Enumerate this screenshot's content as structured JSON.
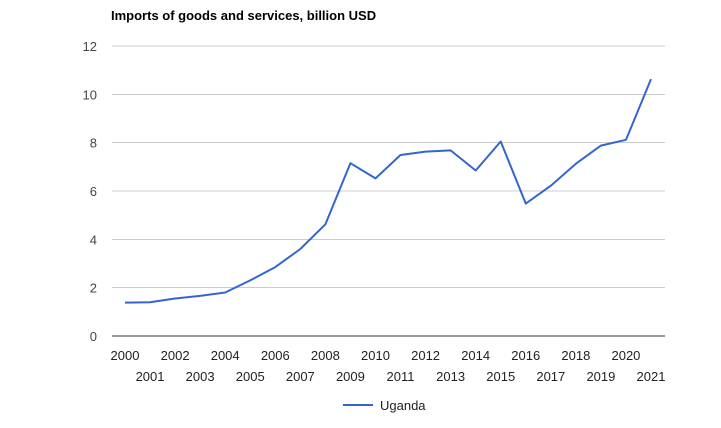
{
  "chart_data": {
    "type": "line",
    "title": "Imports of goods and services, billion USD",
    "xlabel": "",
    "ylabel": "",
    "ylim": [
      0,
      12
    ],
    "yticks": [
      0,
      2,
      4,
      6,
      8,
      10,
      12
    ],
    "grid": true,
    "legend_position": "bottom",
    "x": [
      2000,
      2001,
      2002,
      2003,
      2004,
      2005,
      2006,
      2007,
      2008,
      2009,
      2010,
      2011,
      2012,
      2013,
      2014,
      2015,
      2016,
      2017,
      2018,
      2019,
      2020,
      2021
    ],
    "series": [
      {
        "name": "Uganda",
        "color": "#3366cc",
        "values": [
          1.38,
          1.4,
          1.55,
          1.66,
          1.8,
          2.3,
          2.85,
          3.6,
          4.62,
          7.15,
          6.52,
          7.49,
          7.63,
          7.68,
          6.85,
          8.05,
          5.48,
          6.22,
          7.13,
          7.88,
          8.12,
          10.63
        ]
      }
    ]
  }
}
